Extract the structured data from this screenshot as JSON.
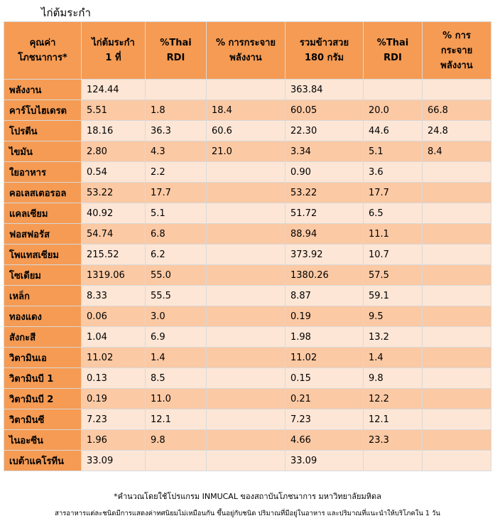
{
  "title": "ไก่ต้มระกำ",
  "table": {
    "headers": [
      "คุณค่า\nโภชนาการ*",
      "ไก่ต้มระกำ\n1 ที่",
      "%Thai RDI",
      "% การกระจาย\nพลังงาน",
      "รวมข้าวสวย\n180 กรัม",
      "%Thai RDI",
      "% การ\nกระจาย\nพลังงาน"
    ],
    "rows": [
      {
        "name": "พลังงาน",
        "cells": [
          "124.44",
          "",
          "",
          "363.84",
          "",
          ""
        ]
      },
      {
        "name": "คาร์โบไฮเดรต",
        "cells": [
          "5.51",
          "1.8",
          "18.4",
          "60.05",
          "20.0",
          "66.8"
        ]
      },
      {
        "name": "โปรตีน",
        "cells": [
          "18.16",
          "36.3",
          "60.6",
          "22.30",
          "44.6",
          "24.8"
        ]
      },
      {
        "name": "ไขมัน",
        "cells": [
          "2.80",
          "4.3",
          "21.0",
          "3.34",
          "5.1",
          "8.4"
        ]
      },
      {
        "name": "ใยอาหาร",
        "cells": [
          "0.54",
          "2.2",
          "",
          "0.90",
          "3.6",
          ""
        ]
      },
      {
        "name": "คอเลสเตอรอล",
        "cells": [
          "53.22",
          "17.7",
          "",
          "53.22",
          "17.7",
          ""
        ]
      },
      {
        "name": "แคลเซียม",
        "cells": [
          "40.92",
          "5.1",
          "",
          "51.72",
          "6.5",
          ""
        ]
      },
      {
        "name": "ฟอสฟอรัส",
        "cells": [
          "54.74",
          "6.8",
          "",
          "88.94",
          "11.1",
          ""
        ]
      },
      {
        "name": "โพแทสเซียม",
        "cells": [
          "215.52",
          "6.2",
          "",
          "373.92",
          "10.7",
          ""
        ]
      },
      {
        "name": "โซเดียม",
        "cells": [
          "1319.06",
          "55.0",
          "",
          "1380.26",
          "57.5",
          ""
        ]
      },
      {
        "name": "เหล็ก",
        "cells": [
          "8.33",
          "55.5",
          "",
          "8.87",
          "59.1",
          ""
        ]
      },
      {
        "name": "ทองแดง",
        "cells": [
          "0.06",
          "3.0",
          "",
          "0.19",
          "9.5",
          ""
        ]
      },
      {
        "name": "สังกะสี",
        "cells": [
          "1.04",
          "6.9",
          "",
          "1.98",
          "13.2",
          ""
        ]
      },
      {
        "name": "วิตามินเอ",
        "cells": [
          "11.02",
          "1.4",
          "",
          "11.02",
          "1.4",
          ""
        ]
      },
      {
        "name": "วิตามินบี 1",
        "cells": [
          "0.13",
          "8.5",
          "",
          "0.15",
          "9.8",
          ""
        ]
      },
      {
        "name": "วิตามินบี 2",
        "cells": [
          "0.19",
          "11.0",
          "",
          "0.21",
          "12.2",
          ""
        ]
      },
      {
        "name": "วิตามินซี",
        "cells": [
          "7.23",
          "12.1",
          "",
          "7.23",
          "12.1",
          ""
        ]
      },
      {
        "name": "ไนอะซีน",
        "cells": [
          "1.96",
          "9.8",
          "",
          "4.66",
          "23.3",
          ""
        ]
      },
      {
        "name": "เบต้าแคโรทีน",
        "cells": [
          "33.09",
          "",
          "",
          "33.09",
          "",
          ""
        ]
      }
    ]
  },
  "footnote1": "*คำนวณโดยใช้โปรแกรม INMUCAL ของสถาบันโภชนาการ มหาวิทยาลัยมหิดล",
  "footnote2": "สารอาหารแต่ละชนิดมีการแสดงค่าทศนิยมไม่เหมือนกัน ขึ้นอยู่กับชนิด ปริมาณที่มีอยู่ในอาหาร และปริมาณที่แนะนำให้บริโภคใน 1 วัน",
  "colors": {
    "header": "#f59b54",
    "row_light": "#fde6d6",
    "row_dark": "#fbc9a4",
    "grid": "#d9d9d9"
  }
}
